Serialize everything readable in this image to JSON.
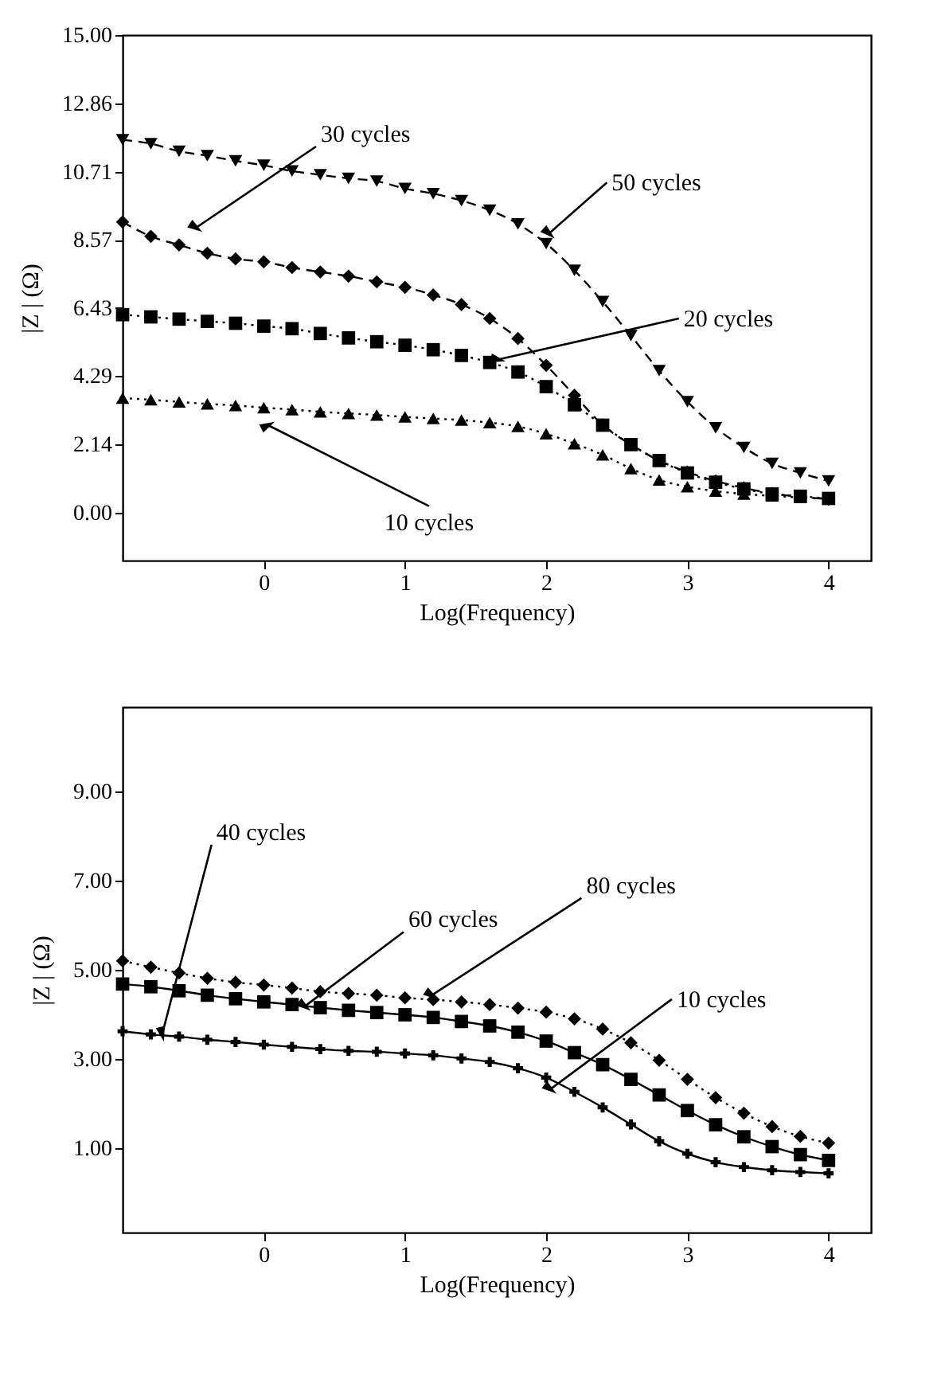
{
  "chart_data": [
    {
      "type": "line",
      "xlabel": "Log(Frequency)",
      "ylabel": "|Z | (Ω)",
      "xlim": [
        -1,
        4.3
      ],
      "ylim": [
        -1.5,
        15
      ],
      "xticks": [
        0,
        1,
        2,
        3,
        4
      ],
      "yticks": [
        {
          "value": 0,
          "label": "0.00"
        },
        {
          "value": 2.14,
          "label": "2.14"
        },
        {
          "value": 4.29,
          "label": "4.29"
        },
        {
          "value": 6.43,
          "label": "6.43"
        },
        {
          "value": 8.57,
          "label": "8.57"
        },
        {
          "value": 10.71,
          "label": "10.71"
        },
        {
          "value": 12.86,
          "label": "12.86"
        },
        {
          "value": 15,
          "label": "15.00"
        }
      ],
      "grid": false,
      "x": [
        -1,
        -0.8,
        -0.6,
        -0.4,
        -0.2,
        0,
        0.2,
        0.4,
        0.6,
        0.8,
        1,
        1.2,
        1.4,
        1.6,
        1.8,
        2,
        2.2,
        2.4,
        2.6,
        2.8,
        3,
        3.2,
        3.4,
        3.6,
        3.8,
        4
      ],
      "series": [
        {
          "color": "#000000",
          "marker": "triangle-down",
          "line_style": "dashed",
          "values": [
            11.71,
            11.59,
            11.35,
            11.21,
            11.05,
            10.91,
            10.73,
            10.61,
            10.5,
            10.41,
            10.18,
            10.02,
            9.8,
            9.5,
            9.07,
            8.45,
            7.61,
            6.63,
            5.56,
            4.46,
            3.49,
            2.67,
            2.05,
            1.55,
            1.25,
            1.0
          ]
        },
        {
          "color": "#000000",
          "marker": "diamond",
          "line_style": "dashed",
          "values": [
            9.13,
            8.68,
            8.41,
            8.15,
            7.97,
            7.88,
            7.7,
            7.56,
            7.43,
            7.25,
            7.08,
            6.84,
            6.54,
            6.1,
            5.47,
            4.63,
            3.69,
            2.76,
            2.14,
            1.64,
            1.28,
            1.0,
            0.78,
            0.61,
            0.5,
            0.43
          ]
        },
        {
          "color": "#000000",
          "marker": "square",
          "line_style": "dotted",
          "values": [
            6.22,
            6.15,
            6.08,
            6.01,
            5.95,
            5.86,
            5.78,
            5.63,
            5.49,
            5.37,
            5.26,
            5.12,
            4.94,
            4.72,
            4.42,
            3.96,
            3.39,
            2.75,
            2.14,
            1.64,
            1.25,
            0.96,
            0.75,
            0.59,
            0.52,
            0.45
          ]
        },
        {
          "color": "#000000",
          "marker": "triangle",
          "line_style": "dotted",
          "values": [
            3.6,
            3.55,
            3.48,
            3.42,
            3.37,
            3.3,
            3.24,
            3.17,
            3.12,
            3.07,
            3.01,
            2.96,
            2.91,
            2.83,
            2.71,
            2.48,
            2.17,
            1.82,
            1.39,
            1.03,
            0.82,
            0.68,
            0.59,
            0.53,
            0.48,
            0.45
          ]
        }
      ],
      "annotations": [
        {
          "text": "30 cycles",
          "x": -0.48,
          "y": 8.95
        },
        {
          "text": "50 cycles",
          "x": 2.02,
          "y": 8.77
        },
        {
          "text": "20 cycles",
          "x": 1.66,
          "y": 4.81
        },
        {
          "text": "10 cycles",
          "x": 0.03,
          "y": 2.75
        }
      ]
    },
    {
      "type": "line",
      "xlabel": "Log(Frequency)",
      "ylabel": "|Z | (Ω)",
      "xlim": [
        -1,
        4.3
      ],
      "ylim": [
        -0.9,
        10.9
      ],
      "xticks": [
        0,
        1,
        2,
        3,
        4
      ],
      "yticks": [
        {
          "value": 1,
          "label": "1.00"
        },
        {
          "value": 3,
          "label": "3.00"
        },
        {
          "value": 5,
          "label": "5.00"
        },
        {
          "value": 7,
          "label": "7.00"
        },
        {
          "value": 9,
          "label": "9.00"
        }
      ],
      "grid": false,
      "x": [
        -1,
        -0.8,
        -0.6,
        -0.4,
        -0.2,
        0,
        0.2,
        0.4,
        0.6,
        0.8,
        1,
        1.2,
        1.4,
        1.6,
        1.8,
        2,
        2.2,
        2.4,
        2.6,
        2.8,
        3,
        3.2,
        3.4,
        3.6,
        3.8,
        4
      ],
      "series": [
        {
          "color": "#000000",
          "marker": "diamond",
          "line_style": "dotted",
          "values": [
            5.2,
            5.06,
            4.93,
            4.81,
            4.72,
            4.66,
            4.59,
            4.51,
            4.47,
            4.43,
            4.37,
            4.33,
            4.28,
            4.22,
            4.14,
            4.05,
            3.9,
            3.67,
            3.36,
            2.97,
            2.54,
            2.13,
            1.78,
            1.48,
            1.26,
            1.11
          ]
        },
        {
          "color": "#000000",
          "marker": "square",
          "line_style": "solid",
          "values": [
            4.68,
            4.62,
            4.53,
            4.43,
            4.35,
            4.28,
            4.22,
            4.15,
            4.09,
            4.04,
            3.99,
            3.93,
            3.84,
            3.74,
            3.6,
            3.4,
            3.14,
            2.87,
            2.54,
            2.19,
            1.84,
            1.52,
            1.25,
            1.03,
            0.85,
            0.72
          ]
        },
        {
          "color": "#000000",
          "marker": "cross",
          "line_style": "solid",
          "values": [
            3.62,
            3.55,
            3.5,
            3.43,
            3.38,
            3.32,
            3.27,
            3.22,
            3.18,
            3.16,
            3.12,
            3.08,
            3.01,
            2.93,
            2.79,
            2.58,
            2.26,
            1.91,
            1.53,
            1.15,
            0.87,
            0.68,
            0.57,
            0.5,
            0.46,
            0.43
          ]
        }
      ],
      "annotations": [
        {
          "text": "40 cycles",
          "x": -0.72,
          "y": 3.55
        },
        {
          "text": "60 cycles",
          "x": 0.29,
          "y": 4.18
        },
        {
          "text": "80 cycles",
          "x": 1.19,
          "y": 4.43
        },
        {
          "text": "10 cycles",
          "x": 2.03,
          "y": 2.32
        }
      ]
    }
  ]
}
